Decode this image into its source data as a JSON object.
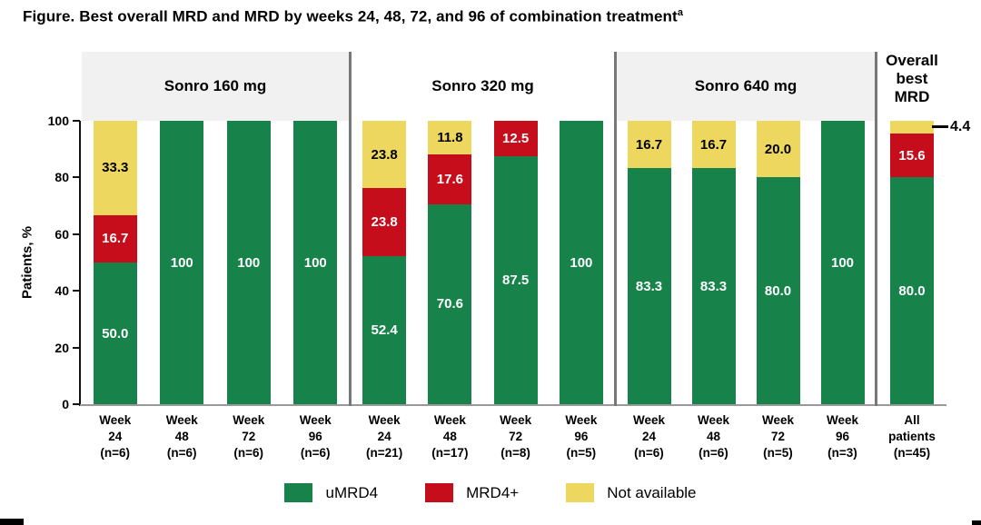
{
  "figure": {
    "title": "Figure. Best overall MRD and MRD by weeks 24, 48, 72, and 96 of combination treatment",
    "title_superscript": "a"
  },
  "chart_data": {
    "type": "bar",
    "stacked": true,
    "ylabel": "Patients, %",
    "ylim": [
      0,
      100
    ],
    "yticks": [
      0,
      20,
      40,
      60,
      80,
      100
    ],
    "legend_position": "bottom",
    "legend": [
      {
        "name": "uMRD4",
        "color": "#17834a",
        "text_color": "#ffffff"
      },
      {
        "name": "MRD4+",
        "color": "#c60d1c",
        "text_color": "#ffffff"
      },
      {
        "name": "Not available",
        "color": "#edd75e",
        "text_color": "#000000"
      }
    ],
    "panels": [
      {
        "title": "Sonro 160 mg",
        "shaded_header": true,
        "bars": [
          {
            "label_lines": [
              "Week",
              "24",
              "(n=6)"
            ],
            "segments": [
              {
                "series": "uMRD4",
                "value": 50.0,
                "label": "50.0"
              },
              {
                "series": "MRD4+",
                "value": 16.7,
                "label": "16.7"
              },
              {
                "series": "Not available",
                "value": 33.3,
                "label": "33.3"
              }
            ]
          },
          {
            "label_lines": [
              "Week",
              "48",
              "(n=6)"
            ],
            "segments": [
              {
                "series": "uMRD4",
                "value": 100,
                "label": "100"
              }
            ]
          },
          {
            "label_lines": [
              "Week",
              "72",
              "(n=6)"
            ],
            "segments": [
              {
                "series": "uMRD4",
                "value": 100,
                "label": "100"
              }
            ]
          },
          {
            "label_lines": [
              "Week",
              "96",
              "(n=6)"
            ],
            "segments": [
              {
                "series": "uMRD4",
                "value": 100,
                "label": "100"
              }
            ]
          }
        ]
      },
      {
        "title": "Sonro 320 mg",
        "shaded_header": false,
        "bars": [
          {
            "label_lines": [
              "Week",
              "24",
              "(n=21)"
            ],
            "segments": [
              {
                "series": "uMRD4",
                "value": 52.4,
                "label": "52.4"
              },
              {
                "series": "MRD4+",
                "value": 23.8,
                "label": "23.8"
              },
              {
                "series": "Not available",
                "value": 23.8,
                "label": "23.8"
              }
            ]
          },
          {
            "label_lines": [
              "Week",
              "48",
              "(n=17)"
            ],
            "segments": [
              {
                "series": "uMRD4",
                "value": 70.6,
                "label": "70.6"
              },
              {
                "series": "MRD4+",
                "value": 17.6,
                "label": "17.6"
              },
              {
                "series": "Not available",
                "value": 11.8,
                "label": "11.8"
              }
            ]
          },
          {
            "label_lines": [
              "Week",
              "72",
              "(n=8)"
            ],
            "segments": [
              {
                "series": "uMRD4",
                "value": 87.5,
                "label": "87.5"
              },
              {
                "series": "MRD4+",
                "value": 12.5,
                "label": "12.5"
              }
            ]
          },
          {
            "label_lines": [
              "Week",
              "96",
              "(n=5)"
            ],
            "segments": [
              {
                "series": "uMRD4",
                "value": 100,
                "label": "100"
              }
            ]
          }
        ]
      },
      {
        "title": "Sonro 640 mg",
        "shaded_header": true,
        "bars": [
          {
            "label_lines": [
              "Week",
              "24",
              "(n=6)"
            ],
            "segments": [
              {
                "series": "uMRD4",
                "value": 83.3,
                "label": "83.3"
              },
              {
                "series": "Not available",
                "value": 16.7,
                "label": "16.7"
              }
            ]
          },
          {
            "label_lines": [
              "Week",
              "48",
              "(n=6)"
            ],
            "segments": [
              {
                "series": "uMRD4",
                "value": 83.3,
                "label": "83.3"
              },
              {
                "series": "Not available",
                "value": 16.7,
                "label": "16.7"
              }
            ]
          },
          {
            "label_lines": [
              "Week",
              "72",
              "(n=5)"
            ],
            "segments": [
              {
                "series": "uMRD4",
                "value": 80.0,
                "label": "80.0"
              },
              {
                "series": "Not available",
                "value": 20.0,
                "label": "20.0"
              }
            ]
          },
          {
            "label_lines": [
              "Week",
              "96",
              "(n=3)"
            ],
            "segments": [
              {
                "series": "uMRD4",
                "value": 100,
                "label": "100"
              }
            ]
          }
        ]
      },
      {
        "title": "Overall best MRD",
        "title_lines": [
          "Overall",
          "best",
          "MRD"
        ],
        "shaded_header": false,
        "bars": [
          {
            "label_lines": [
              "All",
              "patients",
              "(n=45)"
            ],
            "segments": [
              {
                "series": "uMRD4",
                "value": 80.0,
                "label": "80.0"
              },
              {
                "series": "MRD4+",
                "value": 15.6,
                "label": "15.6"
              },
              {
                "series": "Not available",
                "value": 4.4,
                "label": "4.4",
                "callout": true
              }
            ]
          }
        ]
      }
    ]
  }
}
